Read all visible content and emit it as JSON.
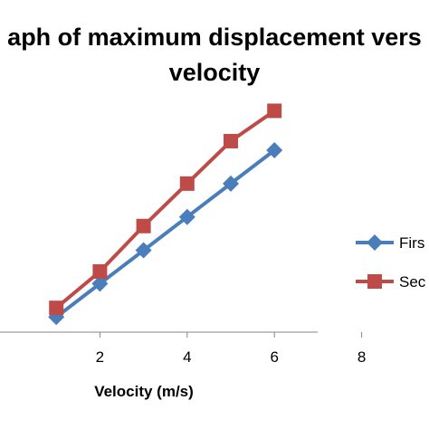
{
  "chart_data": {
    "type": "line",
    "title_line1": "aph of maximum displacement vers",
    "title_line2": "velocity",
    "xlabel": "Velocity (m/s)",
    "ylabel": "",
    "xlim": [
      0,
      8
    ],
    "ylim": [
      0,
      1
    ],
    "x_ticks": [
      "2",
      "4",
      "6",
      "8"
    ],
    "grid": false,
    "legend_position": "right",
    "series": [
      {
        "name": "Firs",
        "color": "#4a7ebb",
        "marker": "diamond",
        "x": [
          1,
          2,
          3,
          4,
          5,
          6
        ],
        "y": [
          0.05,
          0.16,
          0.27,
          0.38,
          0.49,
          0.6
        ]
      },
      {
        "name": "Sec",
        "color": "#be4b48",
        "marker": "square",
        "x": [
          1,
          2,
          3,
          4,
          5,
          6
        ],
        "y": [
          0.08,
          0.2,
          0.35,
          0.49,
          0.63,
          0.73
        ]
      }
    ]
  }
}
